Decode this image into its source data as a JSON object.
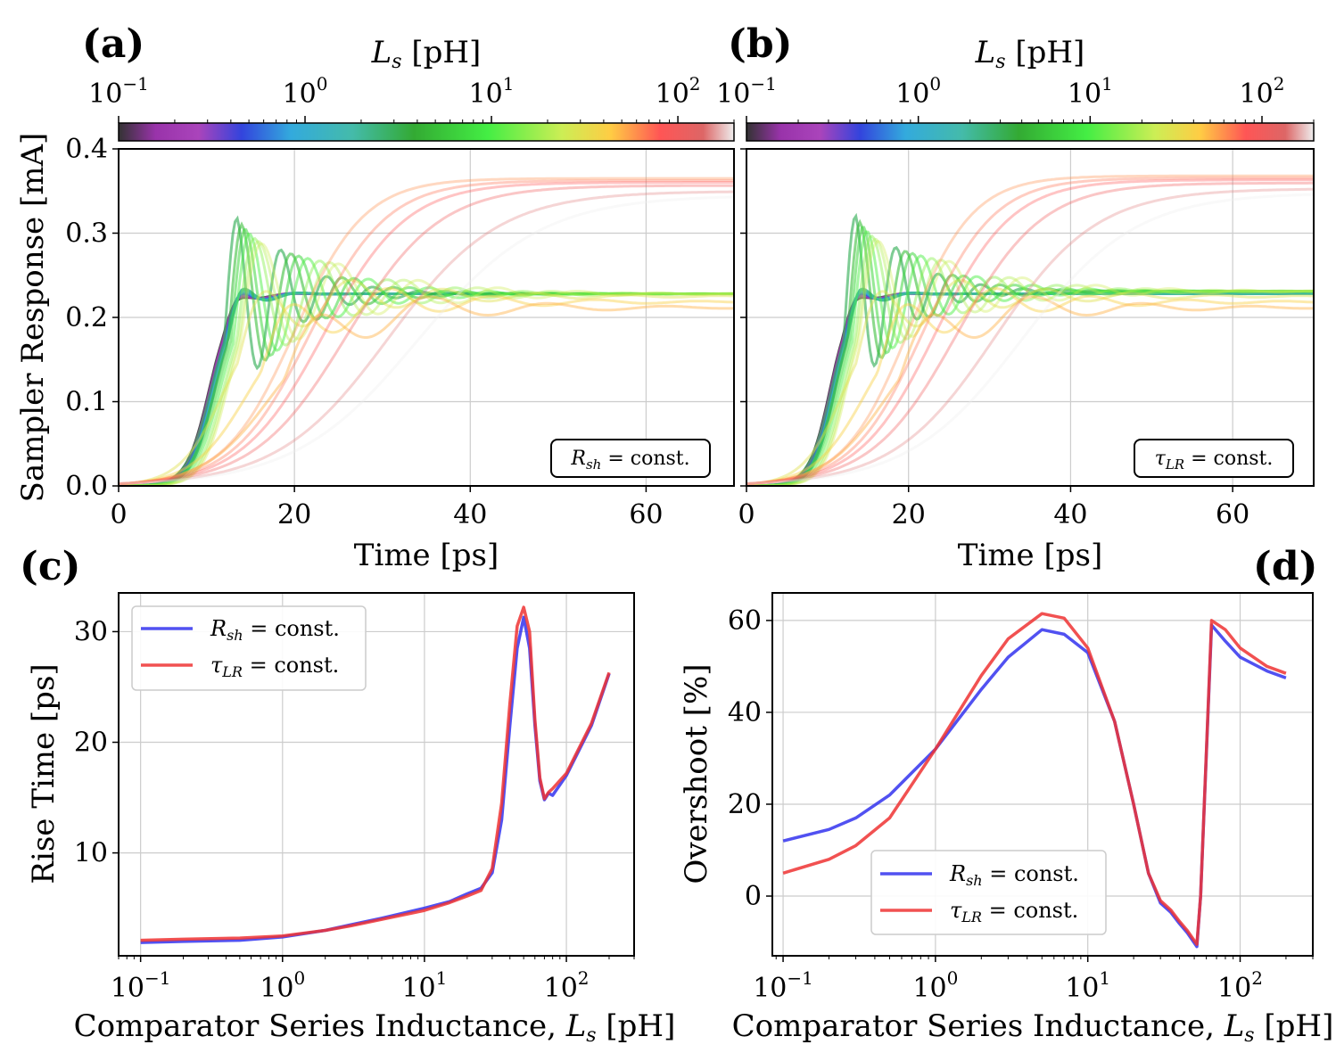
{
  "panels": {
    "a": {
      "label": "(a)",
      "colorbar_label": "L_s [pH]",
      "box": "R_sh = const."
    },
    "b": {
      "label": "(b)",
      "colorbar_label": "L_s [pH]",
      "box": "τ_LR = const."
    },
    "c": {
      "label": "(c)"
    },
    "d": {
      "label": "(d)"
    }
  },
  "colorbar": {
    "ticks": [
      {
        "base": "10",
        "exp": "−1"
      },
      {
        "base": "10",
        "exp": "0"
      },
      {
        "base": "10",
        "exp": "1"
      },
      {
        "base": "10",
        "exp": "2"
      }
    ],
    "range": [
      0.1,
      200
    ]
  },
  "colors": {
    "blue": "#3333ee",
    "red": "#ee3333"
  },
  "chart_data": [
    {
      "type": "line",
      "id": "a",
      "title": "",
      "xlabel": "Time [ps]",
      "ylabel": "Sampler Response [mA]",
      "xlim": [
        0,
        70
      ],
      "ylim": [
        0,
        0.4
      ],
      "xticks": [
        0,
        20,
        40,
        60
      ],
      "yticks": [
        "0.0",
        "0.1",
        "0.2",
        "0.3",
        "0.4"
      ],
      "annotation": "R_sh = const.",
      "series_note": "Family of transient responses, one per L_s value from 0.1 pH to 200 pH, coloured by L_s",
      "L_s_values_pH": [
        0.1,
        0.15,
        0.2,
        0.3,
        0.5,
        0.7,
        1,
        1.5,
        2,
        3,
        5,
        7,
        10,
        15,
        20,
        25,
        30,
        40,
        50,
        60,
        70,
        80,
        100,
        150,
        200
      ],
      "steady_state_mA": {
        "low_L": 0.23,
        "high_L": 0.35
      }
    },
    {
      "type": "line",
      "id": "b",
      "title": "",
      "xlabel": "Time [ps]",
      "ylabel": "",
      "xlim": [
        0,
        70
      ],
      "ylim": [
        0,
        0.4
      ],
      "xticks": [
        0,
        20,
        40,
        60
      ],
      "annotation": "τ_LR = const.",
      "L_s_values_pH": [
        0.1,
        0.15,
        0.2,
        0.3,
        0.5,
        0.7,
        1,
        1.5,
        2,
        3,
        5,
        7,
        10,
        15,
        20,
        25,
        30,
        40,
        50,
        60,
        70,
        80,
        100,
        150,
        200
      ],
      "steady_state_mA": {
        "low_L": 0.23,
        "high_L": 0.36
      }
    },
    {
      "type": "line",
      "id": "c",
      "xlabel": "Comparator Series Inductance, L_s [pH]",
      "ylabel": "Rise Time [ps]",
      "xscale": "log",
      "xlim": [
        0.07,
        300
      ],
      "ylim": [
        0.7,
        33.5
      ],
      "yticks": [
        10,
        20,
        30
      ],
      "legend": "upper left",
      "series": [
        {
          "name": "R_sh = const.",
          "color": "#3333ee",
          "x": [
            0.1,
            0.2,
            0.5,
            1,
            2,
            3,
            5,
            10,
            15,
            20,
            25,
            30,
            35,
            40,
            45,
            50,
            55,
            60,
            65,
            70,
            75,
            80,
            100,
            150,
            200
          ],
          "y": [
            1.9,
            2.0,
            2.1,
            2.4,
            3.0,
            3.5,
            4.1,
            5.0,
            5.6,
            6.3,
            6.8,
            8.2,
            13.0,
            21.5,
            28.5,
            31.3,
            28.5,
            21.5,
            16.5,
            14.8,
            15.4,
            15.2,
            17.0,
            21.5,
            26.2
          ]
        },
        {
          "name": "τ_LR = const.",
          "color": "#ee3333",
          "x": [
            0.1,
            0.2,
            0.5,
            1,
            2,
            3,
            5,
            10,
            15,
            20,
            25,
            30,
            35,
            40,
            45,
            50,
            55,
            60,
            65,
            70,
            75,
            80,
            100,
            150,
            200
          ],
          "y": [
            2.1,
            2.2,
            2.3,
            2.5,
            3.0,
            3.4,
            4.0,
            4.8,
            5.5,
            6.1,
            6.6,
            8.6,
            14.5,
            23.5,
            30.5,
            32.2,
            30.0,
            22.0,
            16.8,
            14.9,
            15.5,
            15.8,
            17.2,
            21.7,
            26.3
          ]
        }
      ]
    },
    {
      "type": "line",
      "id": "d",
      "xlabel": "Comparator Series Inductance, L_s [pH]",
      "ylabel": "Overshoot [%]",
      "xscale": "log",
      "xlim": [
        0.085,
        300
      ],
      "ylim": [
        -13,
        66
      ],
      "yticks": [
        0,
        20,
        40,
        60
      ],
      "legend": "lower center",
      "series": [
        {
          "name": "R_sh = const.",
          "color": "#3333ee",
          "x": [
            0.1,
            0.2,
            0.3,
            0.5,
            1,
            2,
            3,
            5,
            7,
            10,
            15,
            20,
            25,
            30,
            35,
            40,
            45,
            52,
            55,
            65,
            80,
            100,
            150,
            200
          ],
          "y": [
            12,
            14.5,
            17,
            22,
            32,
            45,
            52,
            58,
            57,
            53,
            38,
            20,
            5,
            -1.5,
            -3.5,
            -6,
            -8,
            -11,
            0,
            59,
            55.5,
            52,
            49,
            47.5
          ]
        },
        {
          "name": "τ_LR = const.",
          "color": "#ee3333",
          "x": [
            0.1,
            0.2,
            0.3,
            0.5,
            1,
            2,
            3,
            5,
            7,
            10,
            15,
            20,
            25,
            30,
            35,
            40,
            45,
            52,
            55,
            65,
            80,
            100,
            150,
            200
          ],
          "y": [
            5,
            8,
            11,
            17,
            32,
            48,
            56,
            61.5,
            60.5,
            54,
            38,
            20,
            5,
            -1,
            -3,
            -5.5,
            -7.5,
            -10.5,
            0,
            60,
            58,
            54,
            50,
            48.5
          ]
        }
      ],
      "legend_entries": [
        "R_sh = const.",
        "τ_LR = const."
      ]
    }
  ],
  "legend": {
    "c": [
      {
        "label": "R_sh = const.",
        "color": "#3333ee"
      },
      {
        "label": "τ_LR = const.",
        "color": "#ee3333"
      }
    ],
    "d": [
      {
        "label": "R_sh = const.",
        "color": "#3333ee"
      },
      {
        "label": "τ_LR = const.",
        "color": "#ee3333"
      }
    ]
  }
}
